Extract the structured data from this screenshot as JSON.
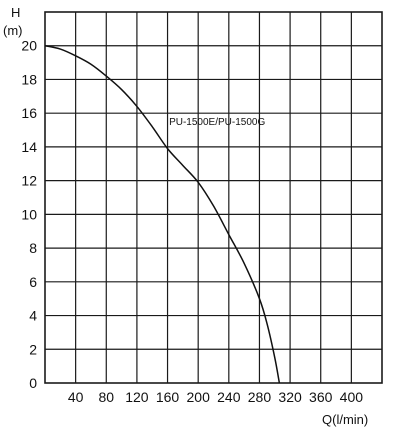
{
  "chart_data": {
    "type": "line",
    "title": "",
    "xlabel": "Q(l/min)",
    "ylabel_top": "H",
    "ylabel_unit": "(m)",
    "xlim": [
      0,
      440
    ],
    "ylim": [
      0,
      22
    ],
    "x_ticks": [
      40,
      80,
      120,
      160,
      200,
      240,
      280,
      320,
      360,
      400
    ],
    "x_tick_labels": [
      "40",
      "80",
      "120",
      "160",
      "200",
      "240",
      "280",
      "320",
      "360",
      "400"
    ],
    "y_ticks": [
      0,
      2,
      4,
      6,
      8,
      10,
      12,
      14,
      16,
      18,
      20
    ],
    "y_tick_labels": [
      "0",
      "2",
      "4",
      "6",
      "8",
      "10",
      "12",
      "14",
      "16",
      "18",
      "20"
    ],
    "grid": true,
    "x_grid_step": 40,
    "y_grid_step": 2,
    "series": [
      {
        "name": "PU-1500E/PU-1500G",
        "x": [
          0,
          20,
          40,
          60,
          80,
          100,
          120,
          140,
          160,
          180,
          200,
          220,
          240,
          260,
          280,
          290,
          300,
          306
        ],
        "y": [
          20,
          19.8,
          19.4,
          18.9,
          18.2,
          17.4,
          16.4,
          15.2,
          13.9,
          12.9,
          11.9,
          10.5,
          8.8,
          7.1,
          5.0,
          3.5,
          1.5,
          0
        ]
      }
    ],
    "colors": {
      "grid": "#1a1a1a",
      "line": "#111111",
      "background": "#ffffff"
    }
  }
}
